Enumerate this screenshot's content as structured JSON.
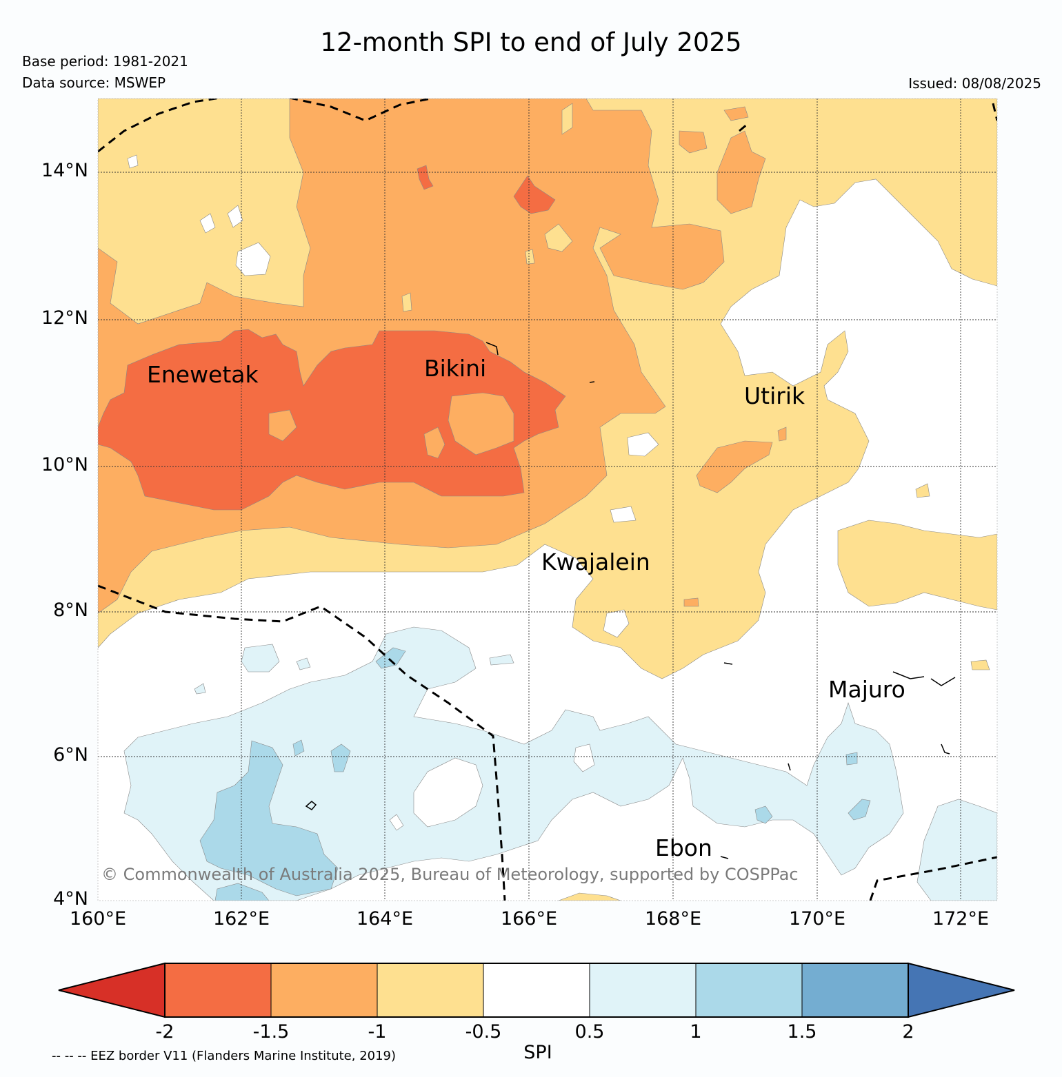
{
  "title": "12-month SPI to end of July 2025",
  "base_period": "Base period: 1981-2021",
  "data_source": "Data source: MSWEP",
  "issued": "Issued: 08/08/2025",
  "copyright": "© Commonwealth of Australia 2025, Bureau of Meteorology, supported by COSPPac",
  "latitude_labels": [
    "14°N",
    "12°N",
    "10°N",
    "8°N",
    "6°N",
    "4°N"
  ],
  "longitude_labels": [
    "160°E",
    "162°E",
    "164°E",
    "166°E",
    "168°E",
    "170°E",
    "172°E"
  ],
  "places": [
    "Enewetak",
    "Bikini",
    "Utirik",
    "Kwajalein",
    "Majuro",
    "Ebon"
  ],
  "colorbar": {
    "title": "SPI",
    "ticks": [
      "-2",
      "-1.5",
      "-1",
      "-0.5",
      "0.5",
      "1",
      "1.5",
      "2"
    ],
    "colors": [
      "#d73027",
      "#f46d43",
      "#fdae61",
      "#fee090",
      "#ffffff",
      "#e0f3f8",
      "#abd9e9",
      "#74add1",
      "#4575b4"
    ]
  },
  "eez_note": "-- -- -- EEZ border V11 (Flanders Marine Institute, 2019)"
}
